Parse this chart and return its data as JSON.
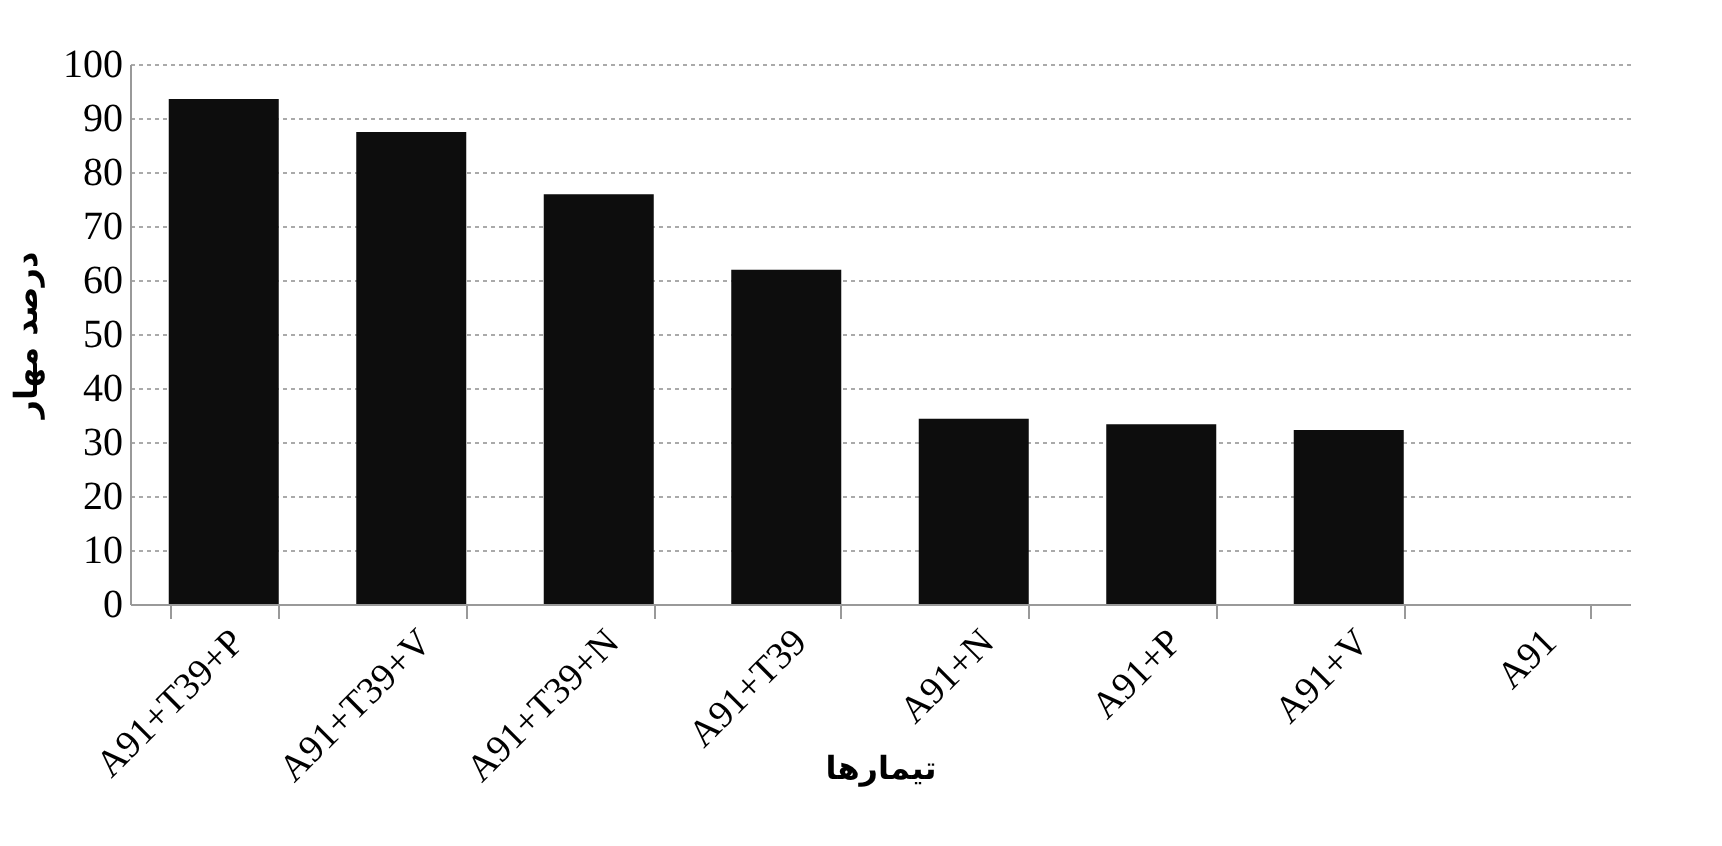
{
  "chart_data": {
    "type": "bar",
    "xlabel": "تیمارها",
    "ylabel": "درصد مهار",
    "categories": [
      "A91+T39+P",
      "A91+T39+V",
      "A91+T39+N",
      "A91+T39",
      "A91+N",
      "A91+P",
      "A91+V",
      "A91"
    ],
    "values": [
      93.5,
      87.4,
      75.9,
      61.9,
      34.3,
      33.3,
      32.2,
      0
    ],
    "color": "#0d0d0d",
    "ylim": [
      0,
      100
    ],
    "yticks": [
      0,
      10,
      20,
      30,
      40,
      50,
      60,
      70,
      80,
      90,
      100
    ],
    "grid": "y",
    "legend": false
  }
}
